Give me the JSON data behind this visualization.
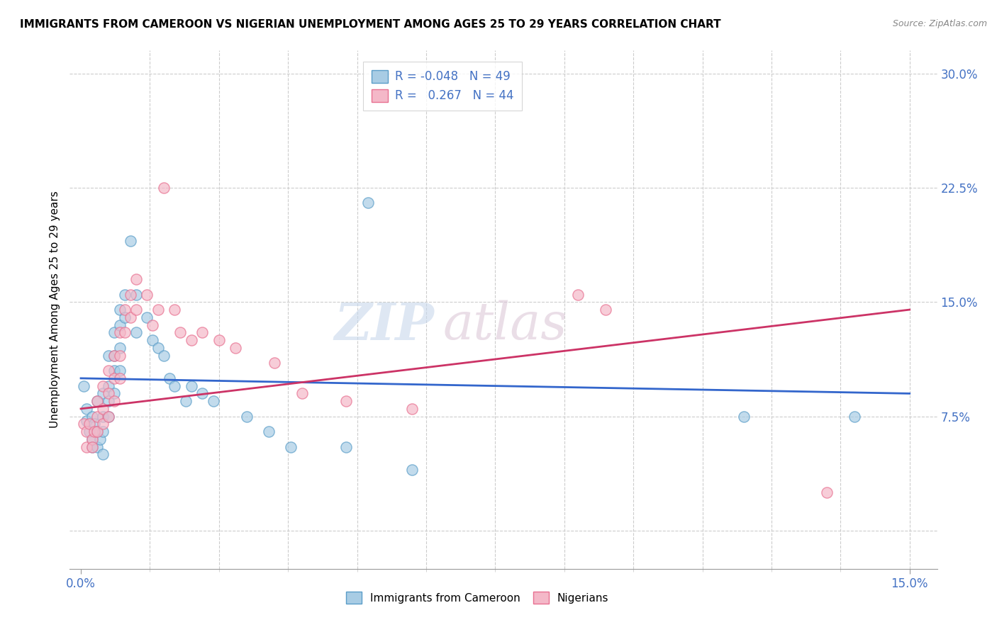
{
  "title": "IMMIGRANTS FROM CAMEROON VS NIGERIAN UNEMPLOYMENT AMONG AGES 25 TO 29 YEARS CORRELATION CHART",
  "source": "Source: ZipAtlas.com",
  "ylabel": "Unemployment Among Ages 25 to 29 years",
  "xlim": [
    -0.002,
    0.155
  ],
  "ylim": [
    -0.025,
    0.315
  ],
  "yticks_right": [
    0.075,
    0.15,
    0.225,
    0.3
  ],
  "yticklabels_right": [
    "7.5%",
    "15.0%",
    "22.5%",
    "30.0%"
  ],
  "blue_color": "#a8cce4",
  "pink_color": "#f4b8c8",
  "blue_edge_color": "#5a9dc8",
  "pink_edge_color": "#e87090",
  "blue_line_color": "#3366cc",
  "pink_line_color": "#cc3366",
  "blue_scatter": [
    [
      0.0005,
      0.095
    ],
    [
      0.001,
      0.08
    ],
    [
      0.001,
      0.072
    ],
    [
      0.0015,
      0.065
    ],
    [
      0.002,
      0.075
    ],
    [
      0.002,
      0.06
    ],
    [
      0.002,
      0.055
    ],
    [
      0.0025,
      0.07
    ],
    [
      0.003,
      0.085
    ],
    [
      0.003,
      0.065
    ],
    [
      0.003,
      0.055
    ],
    [
      0.0035,
      0.06
    ],
    [
      0.004,
      0.09
    ],
    [
      0.004,
      0.075
    ],
    [
      0.004,
      0.065
    ],
    [
      0.004,
      0.05
    ],
    [
      0.005,
      0.115
    ],
    [
      0.005,
      0.095
    ],
    [
      0.005,
      0.085
    ],
    [
      0.005,
      0.075
    ],
    [
      0.006,
      0.13
    ],
    [
      0.006,
      0.115
    ],
    [
      0.006,
      0.105
    ],
    [
      0.006,
      0.09
    ],
    [
      0.007,
      0.145
    ],
    [
      0.007,
      0.135
    ],
    [
      0.007,
      0.12
    ],
    [
      0.007,
      0.105
    ],
    [
      0.008,
      0.155
    ],
    [
      0.008,
      0.14
    ],
    [
      0.009,
      0.19
    ],
    [
      0.01,
      0.155
    ],
    [
      0.01,
      0.13
    ],
    [
      0.012,
      0.14
    ],
    [
      0.013,
      0.125
    ],
    [
      0.014,
      0.12
    ],
    [
      0.015,
      0.115
    ],
    [
      0.016,
      0.1
    ],
    [
      0.017,
      0.095
    ],
    [
      0.019,
      0.085
    ],
    [
      0.02,
      0.095
    ],
    [
      0.022,
      0.09
    ],
    [
      0.024,
      0.085
    ],
    [
      0.03,
      0.075
    ],
    [
      0.034,
      0.065
    ],
    [
      0.038,
      0.055
    ],
    [
      0.048,
      0.055
    ],
    [
      0.052,
      0.215
    ],
    [
      0.06,
      0.04
    ],
    [
      0.12,
      0.075
    ],
    [
      0.14,
      0.075
    ]
  ],
  "pink_scatter": [
    [
      0.0005,
      0.07
    ],
    [
      0.001,
      0.065
    ],
    [
      0.001,
      0.055
    ],
    [
      0.0015,
      0.07
    ],
    [
      0.002,
      0.06
    ],
    [
      0.002,
      0.055
    ],
    [
      0.0025,
      0.065
    ],
    [
      0.003,
      0.085
    ],
    [
      0.003,
      0.075
    ],
    [
      0.003,
      0.065
    ],
    [
      0.004,
      0.095
    ],
    [
      0.004,
      0.08
    ],
    [
      0.004,
      0.07
    ],
    [
      0.005,
      0.105
    ],
    [
      0.005,
      0.09
    ],
    [
      0.005,
      0.075
    ],
    [
      0.006,
      0.115
    ],
    [
      0.006,
      0.1
    ],
    [
      0.006,
      0.085
    ],
    [
      0.007,
      0.13
    ],
    [
      0.007,
      0.115
    ],
    [
      0.007,
      0.1
    ],
    [
      0.008,
      0.145
    ],
    [
      0.008,
      0.13
    ],
    [
      0.009,
      0.155
    ],
    [
      0.009,
      0.14
    ],
    [
      0.01,
      0.165
    ],
    [
      0.01,
      0.145
    ],
    [
      0.012,
      0.155
    ],
    [
      0.013,
      0.135
    ],
    [
      0.014,
      0.145
    ],
    [
      0.015,
      0.225
    ],
    [
      0.017,
      0.145
    ],
    [
      0.018,
      0.13
    ],
    [
      0.02,
      0.125
    ],
    [
      0.022,
      0.13
    ],
    [
      0.025,
      0.125
    ],
    [
      0.028,
      0.12
    ],
    [
      0.035,
      0.11
    ],
    [
      0.04,
      0.09
    ],
    [
      0.048,
      0.085
    ],
    [
      0.06,
      0.08
    ],
    [
      0.09,
      0.155
    ],
    [
      0.095,
      0.145
    ],
    [
      0.135,
      0.025
    ]
  ],
  "background_color": "#ffffff",
  "grid_color": "#cccccc",
  "watermark_zip": "ZIP",
  "watermark_atlas": "atlas",
  "figsize": [
    14.06,
    8.92
  ],
  "dpi": 100
}
